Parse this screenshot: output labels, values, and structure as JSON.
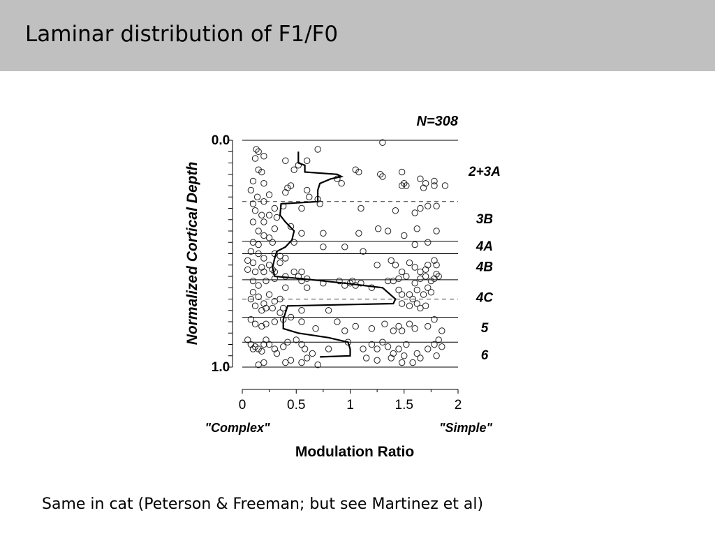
{
  "slide": {
    "title": "Laminar distribution of F1/F0",
    "caption": "Same in cat (Peterson & Freeman; but see Martinez et al)"
  },
  "chart_data": {
    "type": "scatter",
    "n_label": "N=308",
    "xlabel": "Modulation Ratio",
    "ylabel": "Normalized Cortical Depth",
    "x_ticks": [
      "0",
      "0.5",
      "1",
      "1.5",
      "2"
    ],
    "y_ticks": [
      "0.0",
      "1.0"
    ],
    "x_annotations": [
      "\"Complex\"",
      "\"Simple\""
    ],
    "xlim": [
      0,
      2
    ],
    "ylim": [
      0,
      1
    ],
    "layer_boundaries": [
      {
        "depth": 0.0,
        "style": "solid"
      },
      {
        "depth": 0.27,
        "style": "dashed"
      },
      {
        "depth": 0.445,
        "style": "solid"
      },
      {
        "depth": 0.5,
        "style": "solid"
      },
      {
        "depth": 0.615,
        "style": "solid"
      },
      {
        "depth": 0.7,
        "style": "dashed"
      },
      {
        "depth": 0.78,
        "style": "solid"
      },
      {
        "depth": 0.89,
        "style": "solid"
      },
      {
        "depth": 1.0,
        "style": "solid"
      }
    ],
    "layer_labels": [
      {
        "label": "2+3A",
        "depth": 0.135
      },
      {
        "label": "3B",
        "depth": 0.345
      },
      {
        "label": "4A",
        "depth": 0.465
      },
      {
        "label": "4B",
        "depth": 0.555
      },
      {
        "label": "4C",
        "depth": 0.69
      },
      {
        "label": "5",
        "depth": 0.825
      },
      {
        "label": "6",
        "depth": 0.945
      }
    ],
    "mean_curve": [
      [
        0.52,
        0.05
      ],
      [
        0.52,
        0.1
      ],
      [
        0.58,
        0.11
      ],
      [
        0.58,
        0.14
      ],
      [
        0.88,
        0.15
      ],
      [
        0.92,
        0.16
      ],
      [
        0.82,
        0.17
      ],
      [
        0.72,
        0.19
      ],
      [
        0.7,
        0.22
      ],
      [
        0.7,
        0.27
      ],
      [
        0.36,
        0.28
      ],
      [
        0.35,
        0.33
      ],
      [
        0.4,
        0.36
      ],
      [
        0.48,
        0.4
      ],
      [
        0.46,
        0.44
      ],
      [
        0.4,
        0.47
      ],
      [
        0.32,
        0.49
      ],
      [
        0.3,
        0.52
      ],
      [
        0.28,
        0.56
      ],
      [
        0.3,
        0.6
      ],
      [
        0.55,
        0.61
      ],
      [
        0.95,
        0.63
      ],
      [
        1.3,
        0.65
      ],
      [
        1.42,
        0.7
      ],
      [
        1.4,
        0.72
      ],
      [
        0.42,
        0.73
      ],
      [
        0.4,
        0.76
      ],
      [
        0.38,
        0.79
      ],
      [
        0.38,
        0.83
      ],
      [
        0.52,
        0.85
      ],
      [
        0.8,
        0.87
      ],
      [
        0.98,
        0.89
      ],
      [
        1.0,
        0.92
      ],
      [
        1.0,
        0.95
      ],
      [
        0.72,
        0.955
      ]
    ],
    "points": [
      [
        0.13,
        0.04
      ],
      [
        0.15,
        0.05
      ],
      [
        0.7,
        0.04
      ],
      [
        1.3,
        0.01
      ],
      [
        0.12,
        0.08
      ],
      [
        0.2,
        0.07
      ],
      [
        0.4,
        0.09
      ],
      [
        0.6,
        0.09
      ],
      [
        0.52,
        0.11
      ],
      [
        0.48,
        0.13
      ],
      [
        0.15,
        0.13
      ],
      [
        0.18,
        0.14
      ],
      [
        0.1,
        0.18
      ],
      [
        0.2,
        0.19
      ],
      [
        0.45,
        0.2
      ],
      [
        0.42,
        0.21
      ],
      [
        0.88,
        0.17
      ],
      [
        0.92,
        0.19
      ],
      [
        1.05,
        0.13
      ],
      [
        1.08,
        0.14
      ],
      [
        1.28,
        0.15
      ],
      [
        1.3,
        0.16
      ],
      [
        1.48,
        0.14
      ],
      [
        1.5,
        0.19
      ],
      [
        1.48,
        0.2
      ],
      [
        1.52,
        0.2
      ],
      [
        1.65,
        0.17
      ],
      [
        1.68,
        0.21
      ],
      [
        1.7,
        0.19
      ],
      [
        1.78,
        0.18
      ],
      [
        1.78,
        0.2
      ],
      [
        1.88,
        0.2
      ],
      [
        0.08,
        0.22
      ],
      [
        0.14,
        0.25
      ],
      [
        0.25,
        0.24
      ],
      [
        0.4,
        0.23
      ],
      [
        0.6,
        0.22
      ],
      [
        0.62,
        0.25
      ],
      [
        0.7,
        0.26
      ],
      [
        0.72,
        0.28
      ],
      [
        0.1,
        0.28
      ],
      [
        0.2,
        0.27
      ],
      [
        0.3,
        0.3
      ],
      [
        0.38,
        0.29
      ],
      [
        0.12,
        0.31
      ],
      [
        0.18,
        0.33
      ],
      [
        0.25,
        0.33
      ],
      [
        0.32,
        0.34
      ],
      [
        0.55,
        0.3
      ],
      [
        1.1,
        0.3
      ],
      [
        1.42,
        0.31
      ],
      [
        1.6,
        0.32
      ],
      [
        1.65,
        0.3
      ],
      [
        1.72,
        0.29
      ],
      [
        1.8,
        0.29
      ],
      [
        0.1,
        0.36
      ],
      [
        0.2,
        0.36
      ],
      [
        0.3,
        0.39
      ],
      [
        0.15,
        0.4
      ],
      [
        0.2,
        0.42
      ],
      [
        0.25,
        0.43
      ],
      [
        0.45,
        0.38
      ],
      [
        0.55,
        0.41
      ],
      [
        0.75,
        0.41
      ],
      [
        1.08,
        0.41
      ],
      [
        1.26,
        0.39
      ],
      [
        1.35,
        0.4
      ],
      [
        1.5,
        0.42
      ],
      [
        1.62,
        0.39
      ],
      [
        1.8,
        0.4
      ],
      [
        0.1,
        0.45
      ],
      [
        0.15,
        0.46
      ],
      [
        0.28,
        0.45
      ],
      [
        0.48,
        0.45
      ],
      [
        0.75,
        0.47
      ],
      [
        0.95,
        0.47
      ],
      [
        1.12,
        0.49
      ],
      [
        1.6,
        0.46
      ],
      [
        1.72,
        0.45
      ],
      [
        0.08,
        0.49
      ],
      [
        0.15,
        0.5
      ],
      [
        0.2,
        0.52
      ],
      [
        0.3,
        0.5
      ],
      [
        0.35,
        0.51
      ],
      [
        0.4,
        0.52
      ],
      [
        0.05,
        0.53
      ],
      [
        0.1,
        0.54
      ],
      [
        0.18,
        0.56
      ],
      [
        0.25,
        0.55
      ],
      [
        0.28,
        0.57
      ],
      [
        0.35,
        0.54
      ],
      [
        0.05,
        0.57
      ],
      [
        0.12,
        0.58
      ],
      [
        0.2,
        0.58
      ],
      [
        0.3,
        0.58
      ],
      [
        0.4,
        0.6
      ],
      [
        0.48,
        0.58
      ],
      [
        0.52,
        0.6
      ],
      [
        0.55,
        0.58
      ],
      [
        0.6,
        0.61
      ],
      [
        0.1,
        0.62
      ],
      [
        0.15,
        0.64
      ],
      [
        0.22,
        0.62
      ],
      [
        0.3,
        0.61
      ],
      [
        0.4,
        0.65
      ],
      [
        0.55,
        0.62
      ],
      [
        0.6,
        0.65
      ],
      [
        0.75,
        0.63
      ],
      [
        0.9,
        0.62
      ],
      [
        0.95,
        0.64
      ],
      [
        1.0,
        0.63
      ],
      [
        1.02,
        0.62
      ],
      [
        1.05,
        0.64
      ],
      [
        1.1,
        0.63
      ],
      [
        1.2,
        0.65
      ],
      [
        1.35,
        0.62
      ],
      [
        1.4,
        0.62
      ],
      [
        1.45,
        0.61
      ],
      [
        1.52,
        0.6
      ],
      [
        1.6,
        0.63
      ],
      [
        1.65,
        0.61
      ],
      [
        1.7,
        0.6
      ],
      [
        1.75,
        0.62
      ],
      [
        1.78,
        0.61
      ],
      [
        1.8,
        0.59
      ],
      [
        1.55,
        0.54
      ],
      [
        1.6,
        0.56
      ],
      [
        1.65,
        0.58
      ],
      [
        1.7,
        0.57
      ],
      [
        1.72,
        0.55
      ],
      [
        1.78,
        0.53
      ],
      [
        1.8,
        0.55
      ],
      [
        1.82,
        0.6
      ],
      [
        1.48,
        0.58
      ],
      [
        1.42,
        0.55
      ],
      [
        1.38,
        0.53
      ],
      [
        1.25,
        0.55
      ],
      [
        0.1,
        0.67
      ],
      [
        0.15,
        0.69
      ],
      [
        0.2,
        0.72
      ],
      [
        0.25,
        0.68
      ],
      [
        0.3,
        0.71
      ],
      [
        0.35,
        0.7
      ],
      [
        0.08,
        0.7
      ],
      [
        0.12,
        0.73
      ],
      [
        0.18,
        0.75
      ],
      [
        0.22,
        0.74
      ],
      [
        0.28,
        0.74
      ],
      [
        0.35,
        0.76
      ],
      [
        0.38,
        0.74
      ],
      [
        0.55,
        0.75
      ],
      [
        0.8,
        0.75
      ],
      [
        1.45,
        0.66
      ],
      [
        1.48,
        0.68
      ],
      [
        1.55,
        0.68
      ],
      [
        1.58,
        0.7
      ],
      [
        1.62,
        0.66
      ],
      [
        1.68,
        0.68
      ],
      [
        1.72,
        0.65
      ],
      [
        1.75,
        0.67
      ],
      [
        1.62,
        0.72
      ],
      [
        1.65,
        0.74
      ],
      [
        1.7,
        0.73
      ],
      [
        1.55,
        0.73
      ],
      [
        1.48,
        0.72
      ],
      [
        0.08,
        0.79
      ],
      [
        0.12,
        0.81
      ],
      [
        0.18,
        0.82
      ],
      [
        0.22,
        0.81
      ],
      [
        0.3,
        0.8
      ],
      [
        0.38,
        0.79
      ],
      [
        0.45,
        0.78
      ],
      [
        0.55,
        0.8
      ],
      [
        0.68,
        0.83
      ],
      [
        0.88,
        0.8
      ],
      [
        0.95,
        0.84
      ],
      [
        1.05,
        0.82
      ],
      [
        1.2,
        0.83
      ],
      [
        1.32,
        0.81
      ],
      [
        1.4,
        0.84
      ],
      [
        1.45,
        0.82
      ],
      [
        1.48,
        0.84
      ],
      [
        1.55,
        0.81
      ],
      [
        1.6,
        0.83
      ],
      [
        1.72,
        0.82
      ],
      [
        1.78,
        0.79
      ],
      [
        1.85,
        0.84
      ],
      [
        0.05,
        0.88
      ],
      [
        0.08,
        0.9
      ],
      [
        0.1,
        0.92
      ],
      [
        0.12,
        0.91
      ],
      [
        0.15,
        0.92
      ],
      [
        0.18,
        0.93
      ],
      [
        0.2,
        0.9
      ],
      [
        0.22,
        0.88
      ],
      [
        0.25,
        0.9
      ],
      [
        0.3,
        0.92
      ],
      [
        0.32,
        0.94
      ],
      [
        0.38,
        0.91
      ],
      [
        0.42,
        0.89
      ],
      [
        0.5,
        0.88
      ],
      [
        0.55,
        0.9
      ],
      [
        0.58,
        0.92
      ],
      [
        0.6,
        0.96
      ],
      [
        0.55,
        0.98
      ],
      [
        0.7,
        0.99
      ],
      [
        0.65,
        0.94
      ],
      [
        0.8,
        0.92
      ],
      [
        0.98,
        0.89
      ],
      [
        1.12,
        0.92
      ],
      [
        1.2,
        0.9
      ],
      [
        1.25,
        0.92
      ],
      [
        1.3,
        0.89
      ],
      [
        1.35,
        0.91
      ],
      [
        1.38,
        0.96
      ],
      [
        1.4,
        0.94
      ],
      [
        1.45,
        0.92
      ],
      [
        1.52,
        0.9
      ],
      [
        1.5,
        0.95
      ],
      [
        1.48,
        0.98
      ],
      [
        1.58,
        0.98
      ],
      [
        1.62,
        0.94
      ],
      [
        1.65,
        0.96
      ],
      [
        1.72,
        0.92
      ],
      [
        1.78,
        0.9
      ],
      [
        1.82,
        0.88
      ],
      [
        1.85,
        0.91
      ],
      [
        1.8,
        0.95
      ],
      [
        0.15,
        0.99
      ],
      [
        0.2,
        0.98
      ],
      [
        0.4,
        0.98
      ],
      [
        0.45,
        0.97
      ],
      [
        1.15,
        0.96
      ],
      [
        1.25,
        0.97
      ]
    ]
  }
}
